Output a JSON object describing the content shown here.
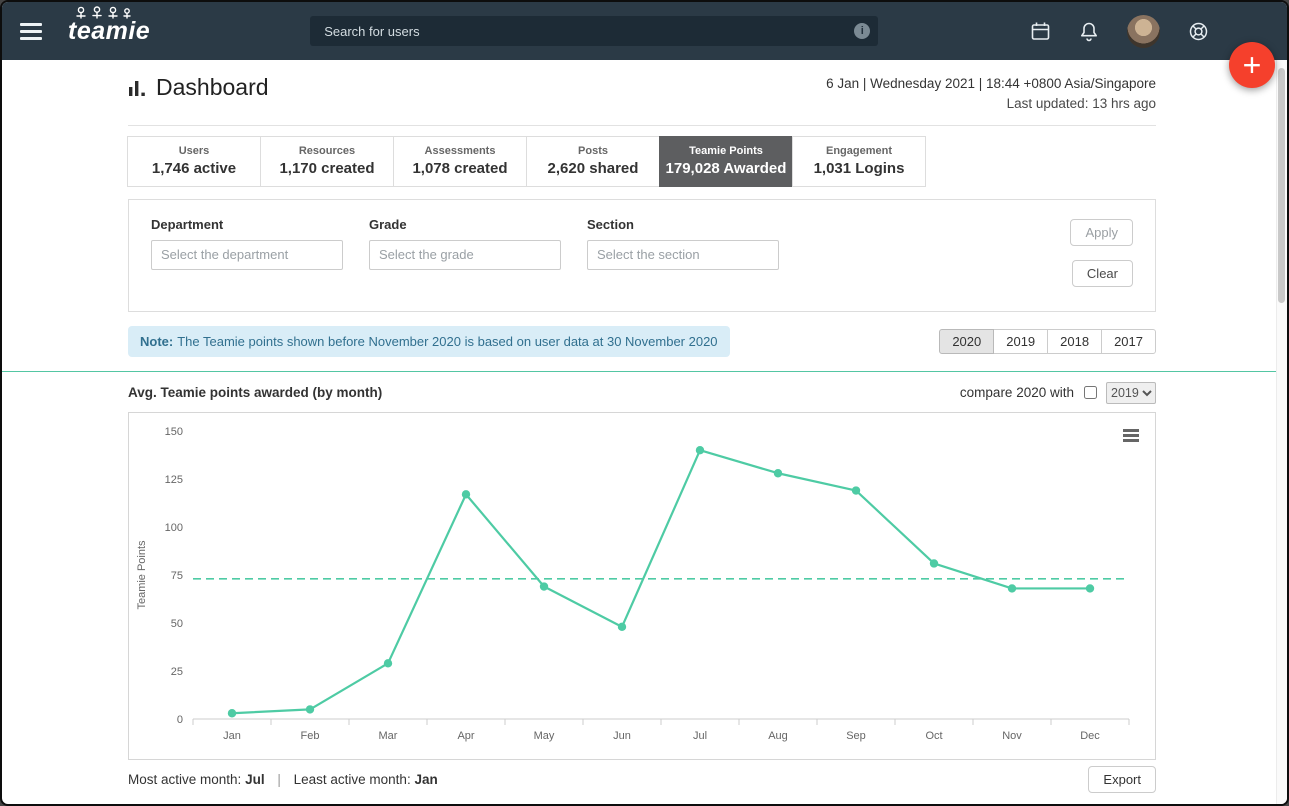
{
  "topbar": {
    "logo_text": "teamie",
    "search_placeholder": "Search for users"
  },
  "icons": {
    "menu_icon": "hamburger",
    "info_icon": "i",
    "calendar_icon": "calendar",
    "bell_icon": "bell",
    "help_icon": "life-buoy",
    "plus_icon": "+",
    "dashboard_icon": "bar-chart",
    "chart_menu_icon": "hamburger"
  },
  "header": {
    "title": "Dashboard",
    "datetime": "6 Jan | Wednesday 2021 | 18:44 +0800 Asia/Singapore",
    "last_updated": "Last updated: 13 hrs ago"
  },
  "stats_tabs": [
    {
      "label": "Users",
      "value": "1,746 active",
      "selected": false
    },
    {
      "label": "Resources",
      "value": "1,170 created",
      "selected": false
    },
    {
      "label": "Assessments",
      "value": "1,078 created",
      "selected": false
    },
    {
      "label": "Posts",
      "value": "2,620 shared",
      "selected": false
    },
    {
      "label": "Teamie Points",
      "value": "179,028 Awarded",
      "selected": true
    },
    {
      "label": "Engagement",
      "value": "1,031 Logins",
      "selected": false
    }
  ],
  "filters": {
    "department_label": "Department",
    "department_placeholder": "Select the department",
    "grade_label": "Grade",
    "grade_placeholder": "Select the grade",
    "section_label": "Section",
    "section_placeholder": "Select the section",
    "apply_label": "Apply",
    "clear_label": "Clear"
  },
  "note": {
    "prefix": "Note:",
    "text": "The Teamie points shown before November 2020 is based on user data at 30 November 2020"
  },
  "year_buttons": [
    {
      "label": "2020",
      "selected": true
    },
    {
      "label": "2019",
      "selected": false
    },
    {
      "label": "2018",
      "selected": false
    },
    {
      "label": "2017",
      "selected": false
    }
  ],
  "chart_header": {
    "title": "Avg. Teamie points awarded (by month)",
    "compare_label": "compare 2020 with",
    "compare_year_option": "2019"
  },
  "chart_data": {
    "type": "line",
    "title": "Avg. Teamie points awarded (by month)",
    "categories": [
      "Jan",
      "Feb",
      "Mar",
      "Apr",
      "May",
      "Jun",
      "Jul",
      "Aug",
      "Sep",
      "Oct",
      "Nov",
      "Dec"
    ],
    "values": [
      3,
      5,
      29,
      117,
      69,
      48,
      140,
      128,
      119,
      81,
      68,
      68
    ],
    "average_line": 73,
    "xlabel": "",
    "ylabel": "Teamie Points",
    "ylim": [
      0,
      150
    ],
    "yticks": [
      0,
      25,
      50,
      75,
      100,
      125,
      150
    ],
    "line_color": "#4ecba4",
    "grid": false,
    "legend": "none"
  },
  "chart_footer": {
    "most_active_label": "Most active month:",
    "most_active_value": "Jul",
    "least_active_label": "Least active month:",
    "least_active_value": "Jan",
    "export_label": "Export"
  },
  "colors": {
    "topbar_bg": "#2b3a46",
    "fab_red": "#f5402c",
    "accent_teal": "#4ecba4",
    "note_bg": "#d9edf7",
    "note_text": "#31708f",
    "selected_tab_bg": "#5d5e60"
  }
}
